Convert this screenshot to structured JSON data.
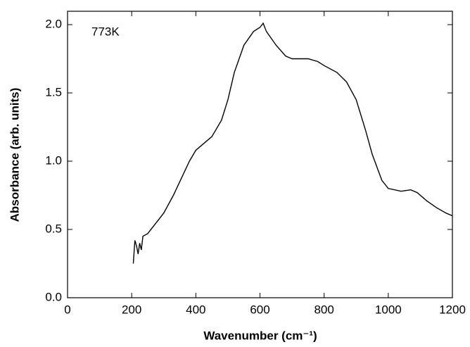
{
  "chart_data": {
    "type": "line",
    "annotation": "773K",
    "xlabel": "Wavenumber (cm⁻¹)",
    "ylabel": "Absorbance (arb. units)",
    "xlim": [
      0,
      1200
    ],
    "xticks": [
      0,
      200,
      400,
      600,
      800,
      1000,
      1200
    ],
    "ylim": [
      0,
      2.0
    ],
    "yticks": [
      {
        "value": 0,
        "label": "0.0"
      },
      0.5,
      {
        "value": 1,
        "label": "1.0"
      },
      1.5,
      {
        "value": 2,
        "label": "2.0"
      }
    ],
    "grid": false,
    "series": [
      {
        "color": "#000000",
        "x": [
          205,
          210,
          215,
          220,
          225,
          230,
          235,
          250,
          270,
          300,
          330,
          350,
          380,
          400,
          430,
          450,
          480,
          500,
          520,
          550,
          580,
          600,
          610,
          620,
          650,
          680,
          700,
          750,
          780,
          800,
          840,
          870,
          900,
          930,
          950,
          980,
          1000,
          1040,
          1070,
          1090,
          1120,
          1150,
          1180,
          1200
        ],
        "values": [
          0.25,
          0.42,
          0.38,
          0.32,
          0.4,
          0.35,
          0.45,
          0.47,
          0.53,
          0.62,
          0.75,
          0.85,
          1.0,
          1.08,
          1.14,
          1.18,
          1.3,
          1.45,
          1.65,
          1.85,
          1.95,
          1.98,
          2.01,
          1.95,
          1.85,
          1.77,
          1.75,
          1.75,
          1.73,
          1.7,
          1.65,
          1.58,
          1.45,
          1.22,
          1.05,
          0.86,
          0.8,
          0.78,
          0.79,
          0.77,
          0.71,
          0.66,
          0.62,
          0.6
        ]
      }
    ]
  }
}
